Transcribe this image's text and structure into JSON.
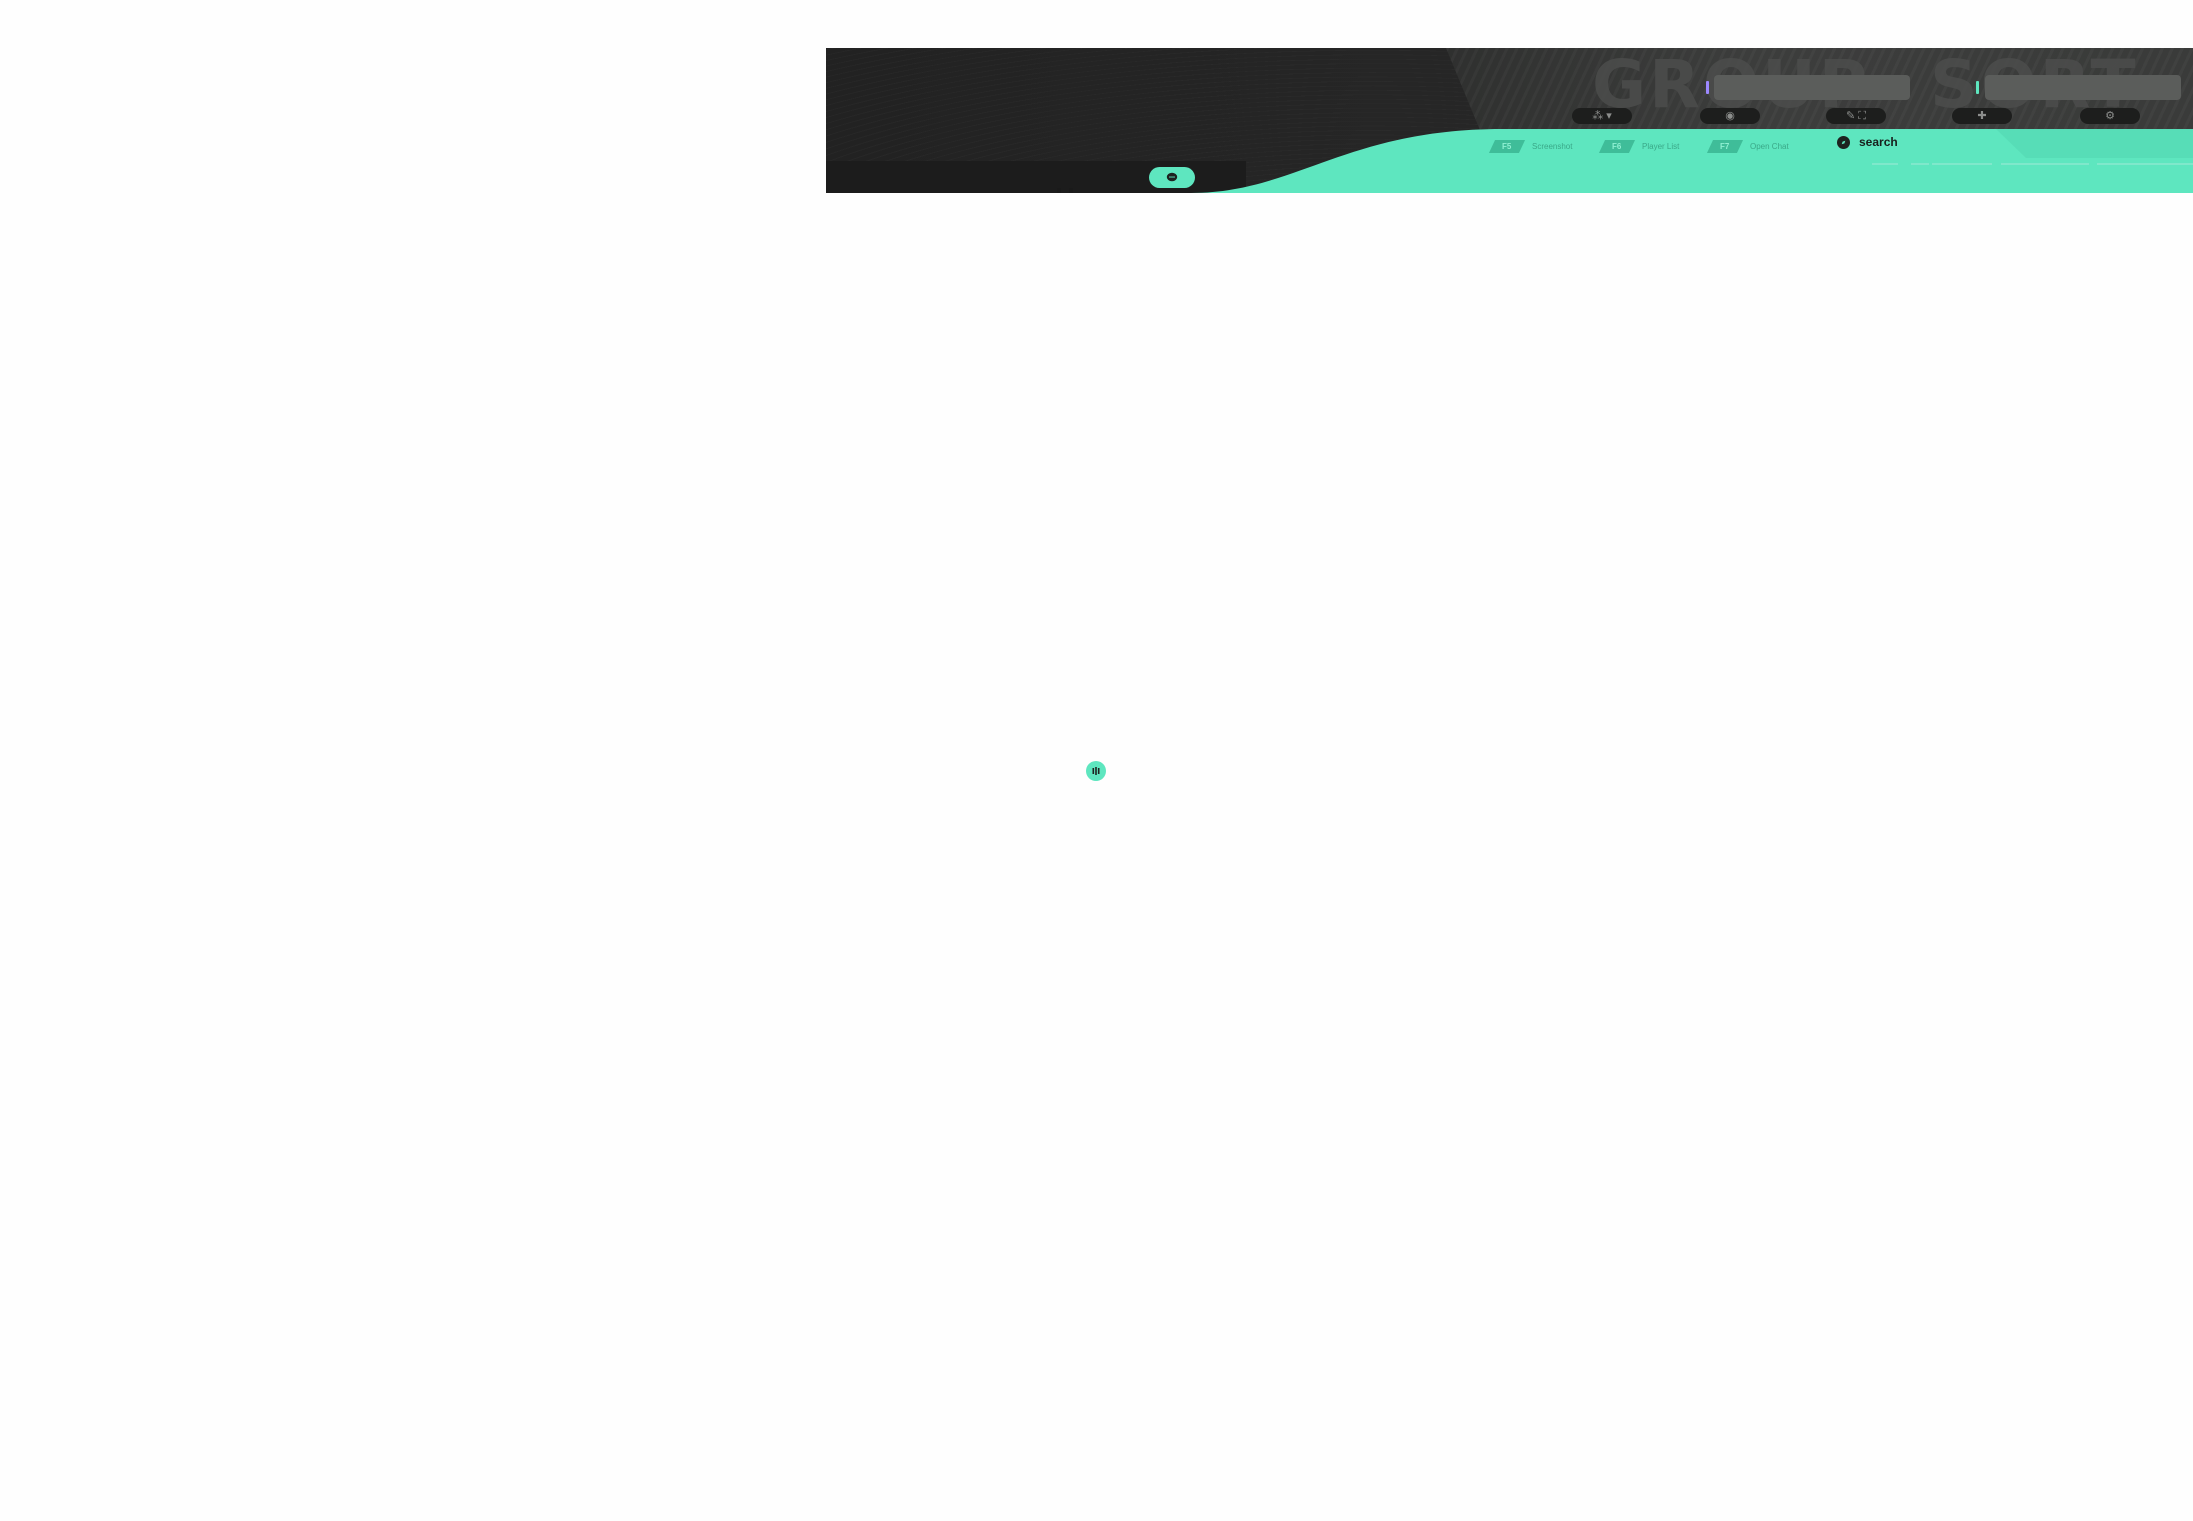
{
  "header": {
    "background_words": [
      "GROUP",
      "SORT"
    ],
    "group_input": {
      "value": "",
      "placeholder": ""
    },
    "sort_input": {
      "value": "",
      "placeholder": ""
    },
    "icon_pills": [
      {
        "icon": "users-icon",
        "glyph": "⁂ ▾"
      },
      {
        "icon": "clock-icon",
        "glyph": "◉"
      },
      {
        "icon": "pin-icon",
        "glyph": "✎ ⛶"
      },
      {
        "icon": "plus-icon",
        "glyph": "✚"
      },
      {
        "icon": "settings-icon",
        "glyph": "⚙"
      }
    ],
    "nav_tabs": [
      {
        "key": "F5",
        "label": "Screenshot"
      },
      {
        "key": "F6",
        "label": "Player List"
      },
      {
        "key": "F7",
        "label": "Open Chat"
      }
    ],
    "search_label": "search"
  },
  "colors": {
    "accent": "#5ee6bf",
    "header_bg": "#232323",
    "caret_primary": "#9c88ff"
  },
  "widgets": {
    "chat_icon": "chat-bubble-icon",
    "float_icon": "audio-bars-icon"
  }
}
